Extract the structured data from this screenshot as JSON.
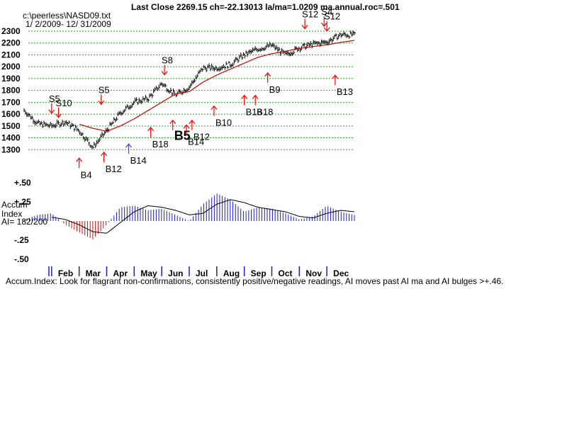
{
  "header": {
    "title": "Last Close 2269.15 ch=-22.13013  la/ma=1.0209 ma.annual.roc=.501",
    "file": "c:\\peerless\\NASD09.txt",
    "daterange": "1/ 2/2009- 12/ 31/2009"
  },
  "footer": "Accum.Index: Look for flagrant non-confirmations, consistently positive/negative readings, AI moves past AI ma and AI bulges >+.46.",
  "accum_title": [
    "Accum",
    "Index"
  ],
  "ai_label": "AI= 182/200",
  "colors": {
    "price": "#000000",
    "ma": "#cc0000",
    "grid": "#22aa22",
    "signal": "#ff0000",
    "buy_alt": "#4444ff",
    "ai_pos": "#1c1cc8",
    "ai_neg": "#d01010"
  },
  "chart_data": [
    {
      "type": "line",
      "title": "Last Close 2269.15 ch=-22.13013  la/ma=1.0209 ma.annual.roc=.501",
      "ylim": [
        1200,
        2300
      ],
      "yticks": [
        1300,
        1400,
        1500,
        1600,
        1700,
        1800,
        1900,
        2000,
        2100,
        2200,
        2300
      ],
      "grid": true,
      "x": [
        0,
        0.5,
        1,
        1.5,
        2,
        2.5,
        3,
        3.5,
        4,
        4.5,
        5,
        5.5,
        6,
        6.5,
        7,
        7.5,
        8,
        8.5,
        9,
        9.5,
        10,
        10.5,
        11,
        11.5,
        12
      ],
      "series": [
        {
          "role": "price",
          "values": [
            1632,
            1520,
            1500,
            1535,
            1460,
            1320,
            1460,
            1610,
            1700,
            1730,
            1860,
            1760,
            1830,
            1990,
            1990,
            2020,
            2100,
            2150,
            2180,
            2100,
            2160,
            2190,
            2210,
            2270,
            2269
          ]
        },
        {
          "role": "ma",
          "values": [
            null,
            null,
            null,
            null,
            1515,
            1480,
            1455,
            1500,
            1560,
            1630,
            1700,
            1770,
            1790,
            1870,
            1930,
            1980,
            2030,
            2080,
            2110,
            2130,
            2155,
            2170,
            2185,
            2205,
            2222
          ]
        }
      ],
      "signals": [
        {
          "label": "S5",
          "x": 1.0,
          "y": 1535,
          "kind": "sell"
        },
        {
          "label": "S10",
          "x": 1.25,
          "y": 1500,
          "kind": "sell"
        },
        {
          "label": "S5",
          "x": 2.8,
          "y": 1610,
          "kind": "sell"
        },
        {
          "label": "S8",
          "x": 5.1,
          "y": 1860,
          "kind": "sell"
        },
        {
          "label": "S12",
          "x": 10.2,
          "y": 2250,
          "kind": "sell"
        },
        {
          "label": "S4",
          "x": 10.9,
          "y": 2270,
          "kind": "sell"
        },
        {
          "label": "S12",
          "x": 11.0,
          "y": 2230,
          "kind": "sell"
        },
        {
          "label": "B4",
          "x": 2.0,
          "y": 1300,
          "kind": "buy"
        },
        {
          "label": "B12",
          "x": 2.9,
          "y": 1350,
          "kind": "buy"
        },
        {
          "label": "B14",
          "x": 3.8,
          "y": 1420,
          "kind": "buy_alt"
        },
        {
          "label": "B18",
          "x": 4.6,
          "y": 1560,
          "kind": "buy"
        },
        {
          "label": "B5",
          "x": 5.4,
          "y": 1620,
          "kind": "buy",
          "big": true
        },
        {
          "label": "B12",
          "x": 6.1,
          "y": 1620,
          "kind": "buy"
        },
        {
          "label": "B14",
          "x": 5.9,
          "y": 1580,
          "kind": "buy"
        },
        {
          "label": "B10",
          "x": 6.9,
          "y": 1740,
          "kind": "buy"
        },
        {
          "label": "B18",
          "x": 8.0,
          "y": 1830,
          "kind": "buy"
        },
        {
          "label": "B18",
          "x": 8.4,
          "y": 1830,
          "kind": "buy"
        },
        {
          "label": "B9",
          "x": 8.85,
          "y": 2020,
          "kind": "buy"
        },
        {
          "label": "B13",
          "x": 11.3,
          "y": 2000,
          "kind": "buy"
        }
      ]
    },
    {
      "type": "area",
      "title": "Accum Index",
      "ylim": [
        -0.5,
        0.5
      ],
      "yticks": [
        "+.50",
        "+.25",
        "-.25",
        "-.50"
      ],
      "x": [
        0,
        0.5,
        1,
        1.5,
        2,
        2.5,
        3,
        3.5,
        4,
        4.5,
        5,
        5.5,
        6,
        6.5,
        7,
        7.5,
        8,
        8.5,
        9,
        9.5,
        10,
        10.5,
        11,
        11.5,
        12
      ],
      "series": [
        {
          "role": "ai",
          "values": [
            0.02,
            0.08,
            0.1,
            -0.05,
            -0.15,
            -0.24,
            -0.05,
            0.18,
            0.2,
            0.14,
            0.16,
            0.08,
            0.0,
            0.22,
            0.36,
            0.28,
            0.12,
            0.18,
            0.16,
            0.1,
            0.02,
            0.06,
            0.2,
            0.12,
            0.08
          ]
        },
        {
          "role": "ai_ma",
          "values": [
            null,
            null,
            0.05,
            0.02,
            -0.05,
            -0.14,
            -0.16,
            -0.02,
            0.12,
            0.2,
            0.18,
            0.14,
            0.08,
            0.1,
            0.22,
            0.28,
            0.24,
            0.18,
            0.15,
            0.12,
            0.06,
            0.04,
            0.1,
            0.14,
            0.12
          ]
        }
      ]
    }
  ],
  "months": [
    "Feb",
    "Mar",
    "Apr",
    "May",
    "Jun",
    "Jul",
    "Aug",
    "Sep",
    "Oct",
    "Nov",
    "Dec"
  ]
}
